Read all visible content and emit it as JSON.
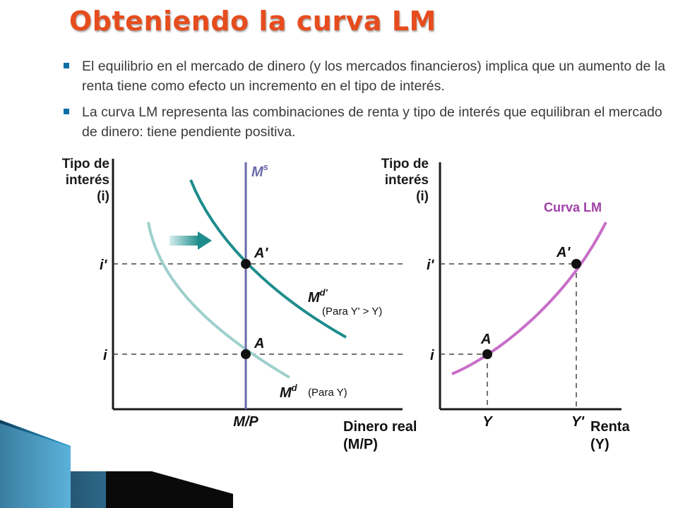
{
  "title": "Obteniendo la curva LM",
  "bullets": [
    "El equilibrio en el mercado de dinero (y los mercados financieros) implica que un aumento de la renta tiene como efecto un incremento en el tipo de interés.",
    "La curva LM representa las combinaciones de renta y tipo de interés que equilibran el mercado de dinero: tiene pendiente positiva."
  ],
  "left_graph": {
    "y_axis_label": [
      "Tipo de",
      "interés",
      "(i)"
    ],
    "x_axis_label": [
      "Dinero real",
      "(M/P)"
    ],
    "supply_label": "M",
    "supply_sup": "s",
    "y_ticks": [
      "i'",
      "i"
    ],
    "x_tick": "M/P",
    "point_high": "A'",
    "point_low": "A",
    "demand_new_label": "M",
    "demand_new_sup": "d'",
    "demand_new_note": "(Para Y' > Y)",
    "demand_old_label": "M",
    "demand_old_sup": "d",
    "demand_old_note": "(Para Y)"
  },
  "right_graph": {
    "y_axis_label": [
      "Tipo de",
      "interés",
      "(i)"
    ],
    "x_axis_label": [
      "Renta",
      "(Y)"
    ],
    "curve_label": "Curva LM",
    "y_ticks": [
      "i'",
      "i"
    ],
    "x_ticks": [
      "Y",
      "Y'"
    ],
    "point_low": "A",
    "point_high": "A'"
  },
  "colors": {
    "title": "#e64d1e",
    "money_supply": "#6a6aaa",
    "demand_new": "#1e8c8c",
    "demand_old": "#9ed0cc",
    "lm_curve": "#c86ec8",
    "curve_label": "#a040a8",
    "axis": "#1a1a1a"
  }
}
